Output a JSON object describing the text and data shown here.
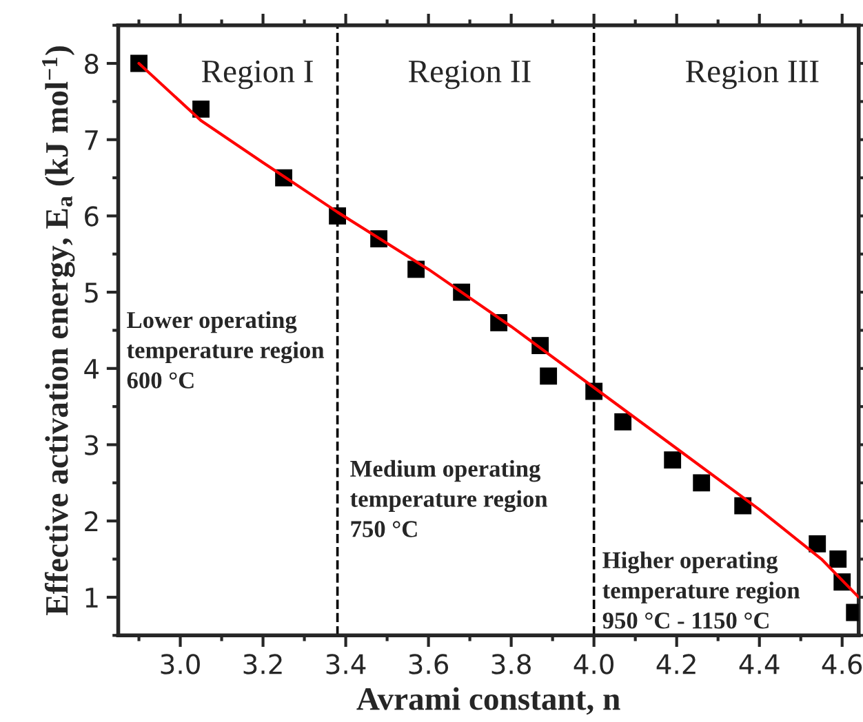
{
  "chart_data": {
    "type": "scatter",
    "xlabel": "Avrami constant, n",
    "ylabel": "Effective activation energy, E$_{a}$ (kJ mol$^{−1}$)",
    "xlim": [
      2.85,
      4.64
    ],
    "ylim": [
      0.5,
      8.5
    ],
    "xticks": [
      {
        "value": 3.0,
        "label": "3.0"
      },
      3.2,
      3.4,
      3.6,
      3.8,
      {
        "value": 4.0,
        "label": "4.0"
      },
      4.2,
      4.4,
      4.6
    ],
    "yticks": [
      1,
      2,
      3,
      4,
      5,
      6,
      7,
      8
    ],
    "grid": false,
    "legend": false,
    "series": [
      {
        "marker": "square",
        "color": "#000000",
        "x": [
          2.9,
          3.05,
          3.25,
          3.38,
          3.48,
          3.57,
          3.68,
          3.77,
          3.87,
          3.89,
          4.0,
          4.07,
          4.19,
          4.26,
          4.36,
          4.54,
          4.59,
          4.6,
          4.63
        ],
        "values": [
          8.0,
          7.4,
          6.5,
          6.0,
          5.7,
          5.3,
          5.0,
          4.6,
          4.3,
          3.9,
          3.7,
          3.3,
          2.8,
          2.5,
          2.2,
          1.7,
          1.5,
          1.2,
          0.8
        ]
      },
      {
        "type": "line",
        "marker": "none",
        "color": "#ff0000",
        "x": [
          2.9,
          3.05,
          3.2,
          3.38,
          3.6,
          3.8,
          4.0,
          4.2,
          4.4,
          4.55,
          4.64
        ],
        "values": [
          8.0,
          7.25,
          6.7,
          6.05,
          5.3,
          4.55,
          3.75,
          2.95,
          2.15,
          1.5,
          1.0
        ]
      }
    ],
    "ref_lines": [
      {
        "axis": "x",
        "value": 3.38,
        "color": "#000000",
        "line_style": "dashed"
      },
      {
        "axis": "x",
        "value": 4.0,
        "color": "#000000",
        "line_style": "dashed"
      }
    ],
    "annotations": [
      "Region I",
      "Region II",
      "Region III",
      "Lower operating\ntemperature region\n600 °C",
      "Medium operating\ntemperature region\n750 °C",
      "Higher operating\ntemperature region\n950 °C - 1150 °C"
    ]
  }
}
